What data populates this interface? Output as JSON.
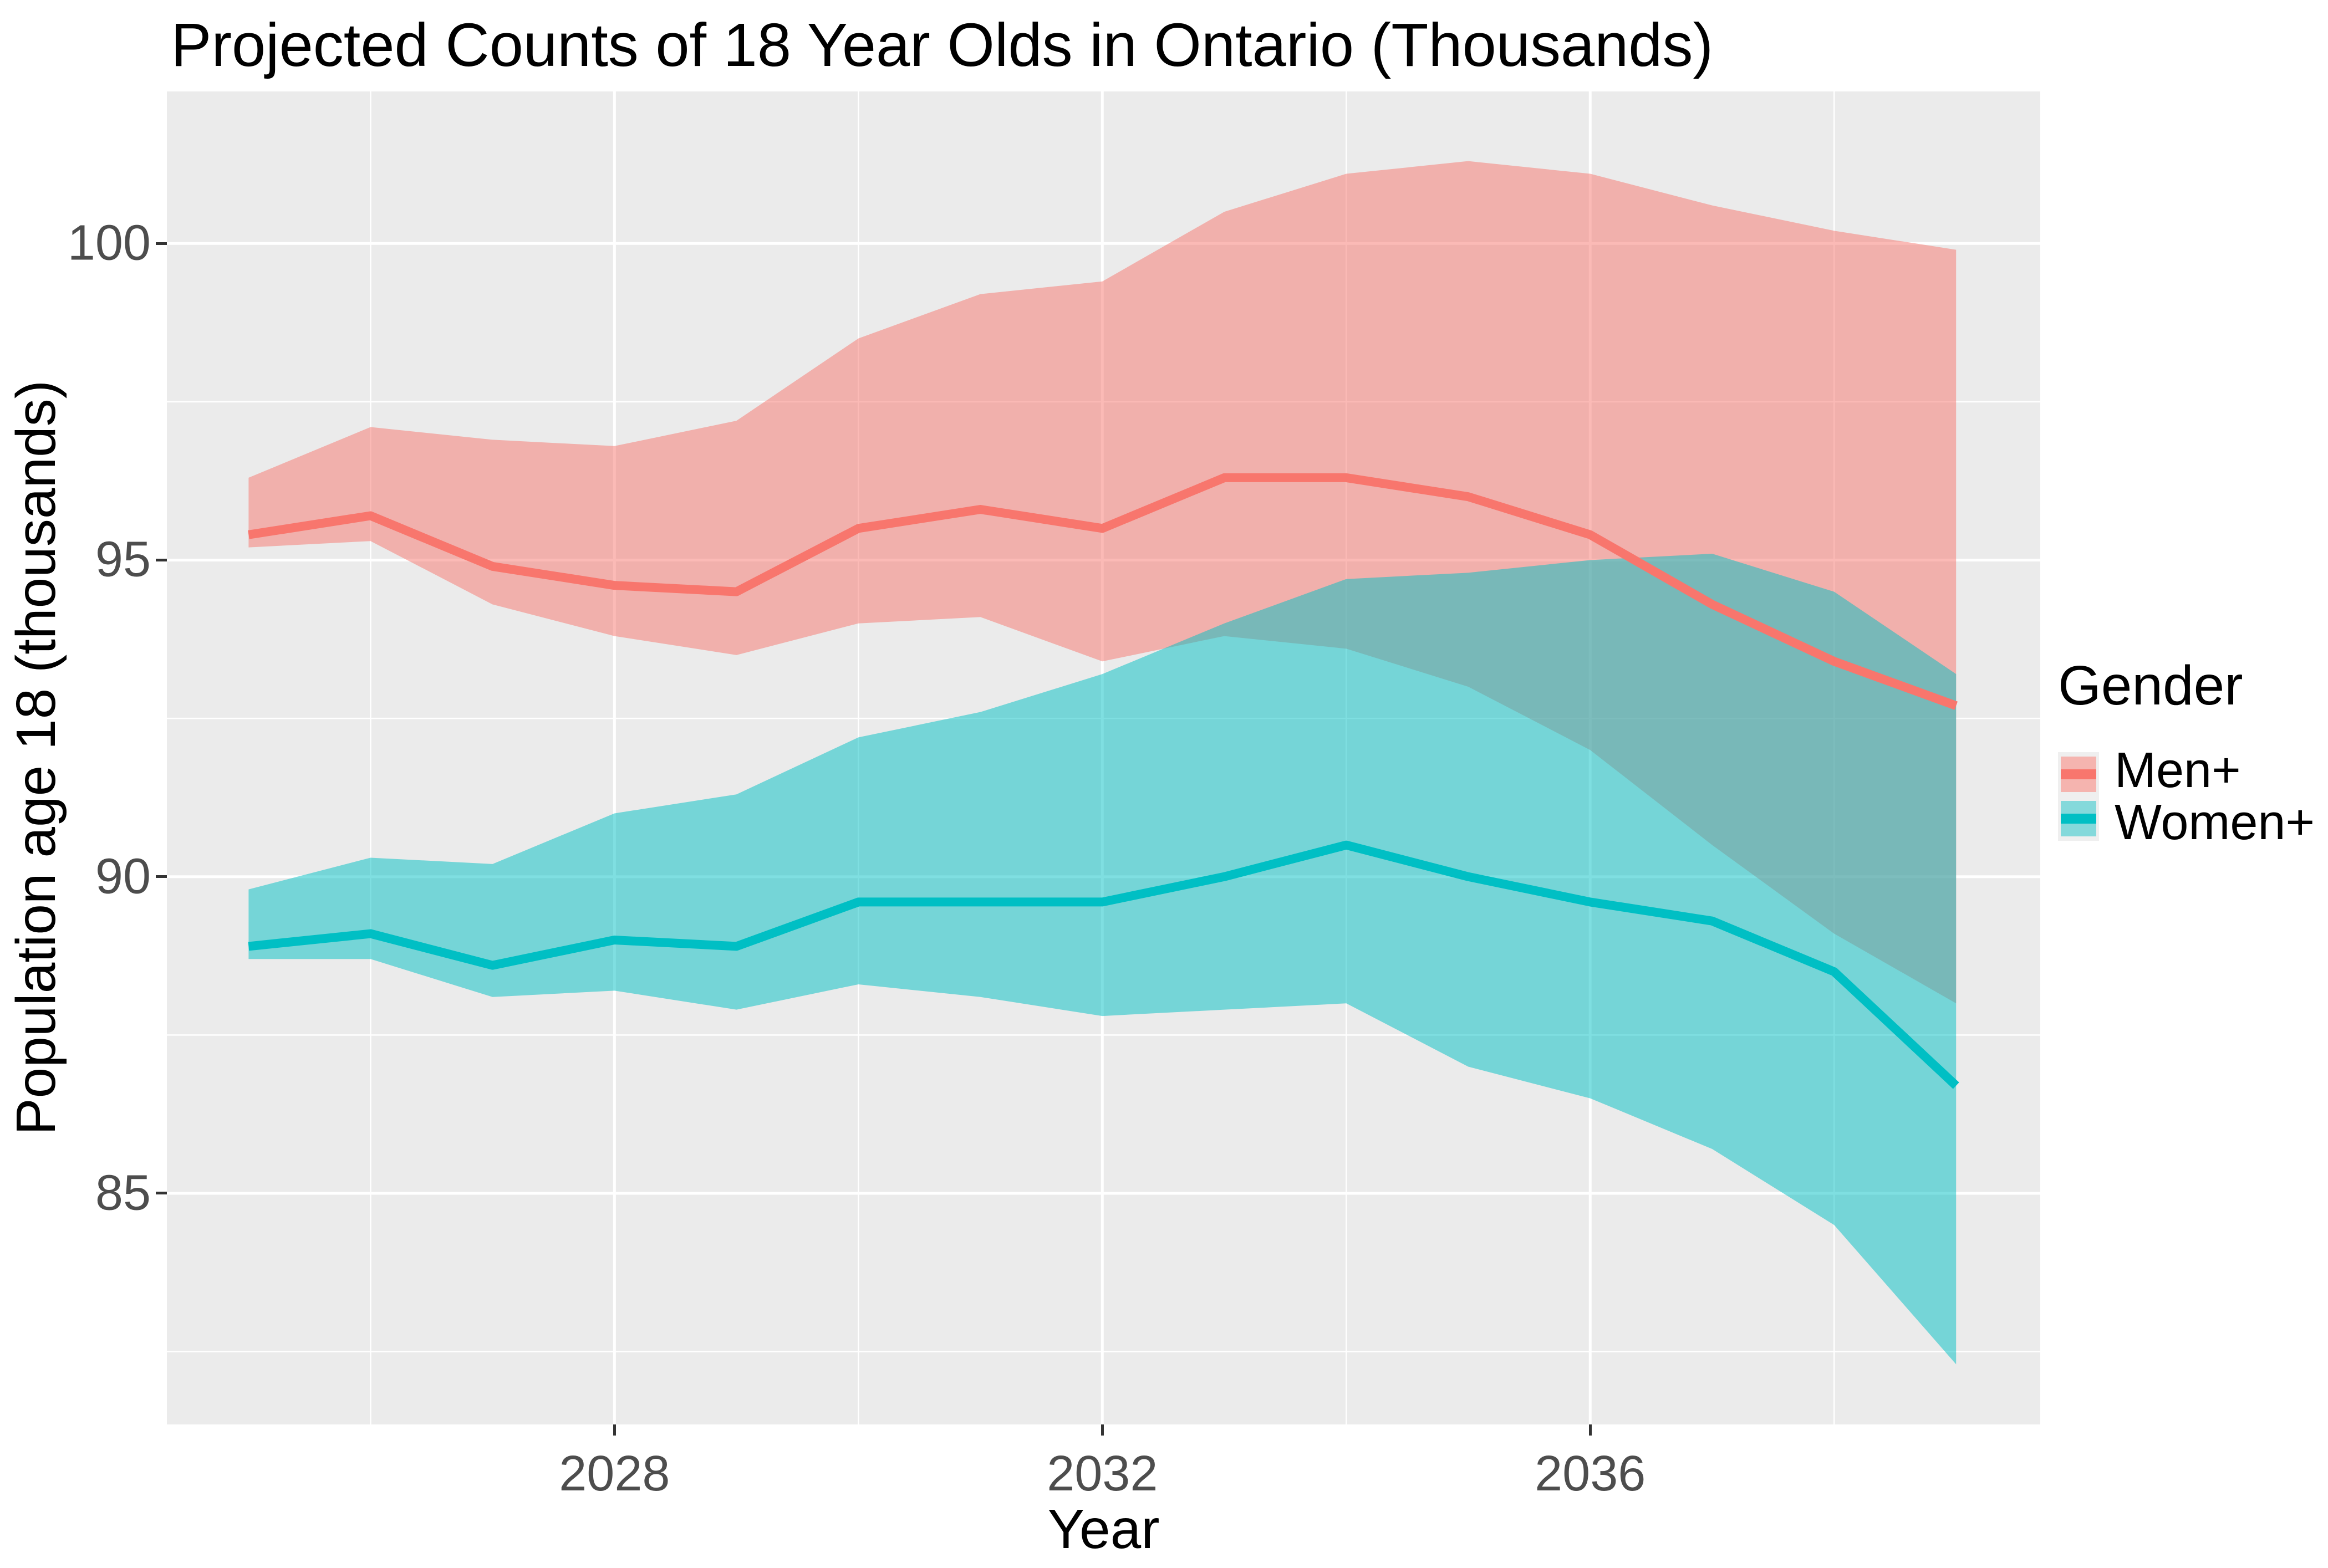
{
  "chart_data": {
    "type": "line",
    "title": "Projected Counts of 18 Year Olds in Ontario (Thousands)",
    "xlabel": "Year",
    "ylabel": "Population age 18 (thousands)",
    "x": [
      2025,
      2026,
      2027,
      2028,
      2029,
      2030,
      2031,
      2032,
      2033,
      2034,
      2035,
      2036,
      2037,
      2038,
      2039
    ],
    "series": [
      {
        "name": "Men+",
        "color": "#F8766D",
        "values": [
          95.4,
          95.7,
          94.9,
          94.6,
          94.5,
          95.5,
          95.8,
          95.5,
          96.3,
          96.3,
          96.0,
          95.4,
          94.3,
          93.4,
          92.7
        ],
        "ribbon_upper": [
          96.3,
          97.1,
          96.9,
          96.8,
          97.2,
          98.5,
          99.2,
          99.4,
          100.5,
          101.1,
          101.3,
          101.1,
          100.6,
          100.2,
          99.9
        ],
        "ribbon_lower": [
          95.2,
          95.3,
          94.3,
          93.8,
          93.5,
          94.0,
          94.1,
          93.4,
          93.8,
          93.6,
          93.0,
          92.0,
          90.5,
          89.1,
          88.0
        ]
      },
      {
        "name": "Women+",
        "color": "#00BFC4",
        "values": [
          88.9,
          89.1,
          88.6,
          89.0,
          88.9,
          89.6,
          89.6,
          89.6,
          90.0,
          90.5,
          90.0,
          89.6,
          89.3,
          88.5,
          86.7
        ],
        "ribbon_upper": [
          89.8,
          90.3,
          90.2,
          91.0,
          91.3,
          92.2,
          92.6,
          93.2,
          94.0,
          94.7,
          94.8,
          95.0,
          95.1,
          94.5,
          93.2
        ],
        "ribbon_lower": [
          88.7,
          88.7,
          88.1,
          88.2,
          87.9,
          88.3,
          88.1,
          87.8,
          87.9,
          88.0,
          87.0,
          86.5,
          85.7,
          84.5,
          82.3
        ]
      }
    ],
    "ribbon_opacity": 0.5,
    "x_axis": {
      "tick_labels": [
        "2028",
        "2032",
        "2036"
      ],
      "tick_values": [
        2028,
        2032,
        2036
      ],
      "minor_breaks": [
        2026,
        2030,
        2034,
        2038
      ],
      "lim": [
        2024.33,
        2039.69
      ]
    },
    "y_axis": {
      "tick_labels": [
        "100",
        "95",
        "90",
        "85"
      ],
      "tick_values": [
        100,
        95,
        90,
        85
      ],
      "minor_breaks": [
        97.5,
        92.5,
        87.5,
        82.5
      ],
      "lim": [
        81.35,
        102.4
      ]
    },
    "legend": {
      "title": "Gender",
      "position": "right",
      "entries": [
        {
          "label": "Men+",
          "line_color": "#F8766D",
          "ribbon_color": "#F5B4AF"
        },
        {
          "label": "Women+",
          "line_color": "#00BFC4",
          "ribbon_color": "#84D9DB"
        }
      ]
    },
    "style": {
      "panel_background": "#EBEBEB",
      "grid_color": "#FFFFFF",
      "tick_color": "#333333",
      "tick_text_color": "#4D4D4D",
      "line_width": 16
    }
  }
}
